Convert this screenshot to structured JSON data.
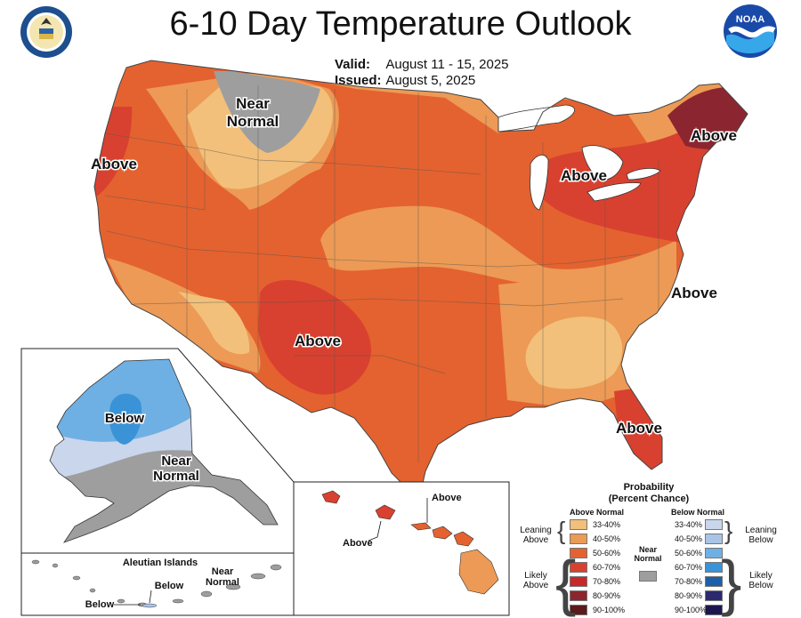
{
  "title": "6-10 Day Temperature Outlook",
  "valid": {
    "label": "Valid:",
    "value": "August 11 - 15, 2025"
  },
  "issued": {
    "label": "Issued:",
    "value": "August 5, 2025"
  },
  "logos": {
    "left": "department-of-commerce-seal",
    "right": "noaa-logo",
    "right_text": "NOAA"
  },
  "map_labels": {
    "near_normal_1": "Near",
    "near_normal_2": "Normal",
    "above_west": "Above",
    "above_northeast": "Above",
    "above_michigan": "Above",
    "above_southwest": "Above",
    "above_carolina": "Above",
    "above_florida": "Above"
  },
  "alaska": {
    "below": "Below",
    "near_1": "Near",
    "near_2": "Normal"
  },
  "aleutian": {
    "title": "Aleutian Islands",
    "near_1": "Near",
    "near_2": "Normal",
    "below_1": "Below",
    "below_2": "Below"
  },
  "hawaii": {
    "above_1": "Above",
    "above_2": "Above"
  },
  "legend": {
    "title_1": "Probability",
    "title_2": "(Percent Chance)",
    "above_header": "Above Normal",
    "below_header": "Below Normal",
    "near_normal_1": "Near",
    "near_normal_2": "Normal",
    "leaning_above_1": "Leaning",
    "leaning_above_2": "Above",
    "likely_above_1": "Likely",
    "likely_above_2": "Above",
    "leaning_below_1": "Leaning",
    "leaning_below_2": "Below",
    "likely_below_1": "Likely",
    "likely_below_2": "Below",
    "above_bins": [
      {
        "label": "33-40%",
        "color": "#f2c07a"
      },
      {
        "label": "40-50%",
        "color": "#ec9a55"
      },
      {
        "label": "50-60%",
        "color": "#e4622f"
      },
      {
        "label": "60-70%",
        "color": "#d8412f"
      },
      {
        "label": "70-80%",
        "color": "#c8292b"
      },
      {
        "label": "80-90%",
        "color": "#8b2630"
      },
      {
        "label": "90-100%",
        "color": "#5c1a1a"
      }
    ],
    "below_bins": [
      {
        "label": "33-40%",
        "color": "#c9d6ec"
      },
      {
        "label": "40-50%",
        "color": "#a9c4e6"
      },
      {
        "label": "50-60%",
        "color": "#6fb0e4"
      },
      {
        "label": "60-70%",
        "color": "#3a93d6"
      },
      {
        "label": "70-80%",
        "color": "#1d5fa8"
      },
      {
        "label": "80-90%",
        "color": "#2b2a6e"
      },
      {
        "label": "90-100%",
        "color": "#1c1650"
      }
    ],
    "near_color": "#9e9e9e"
  }
}
